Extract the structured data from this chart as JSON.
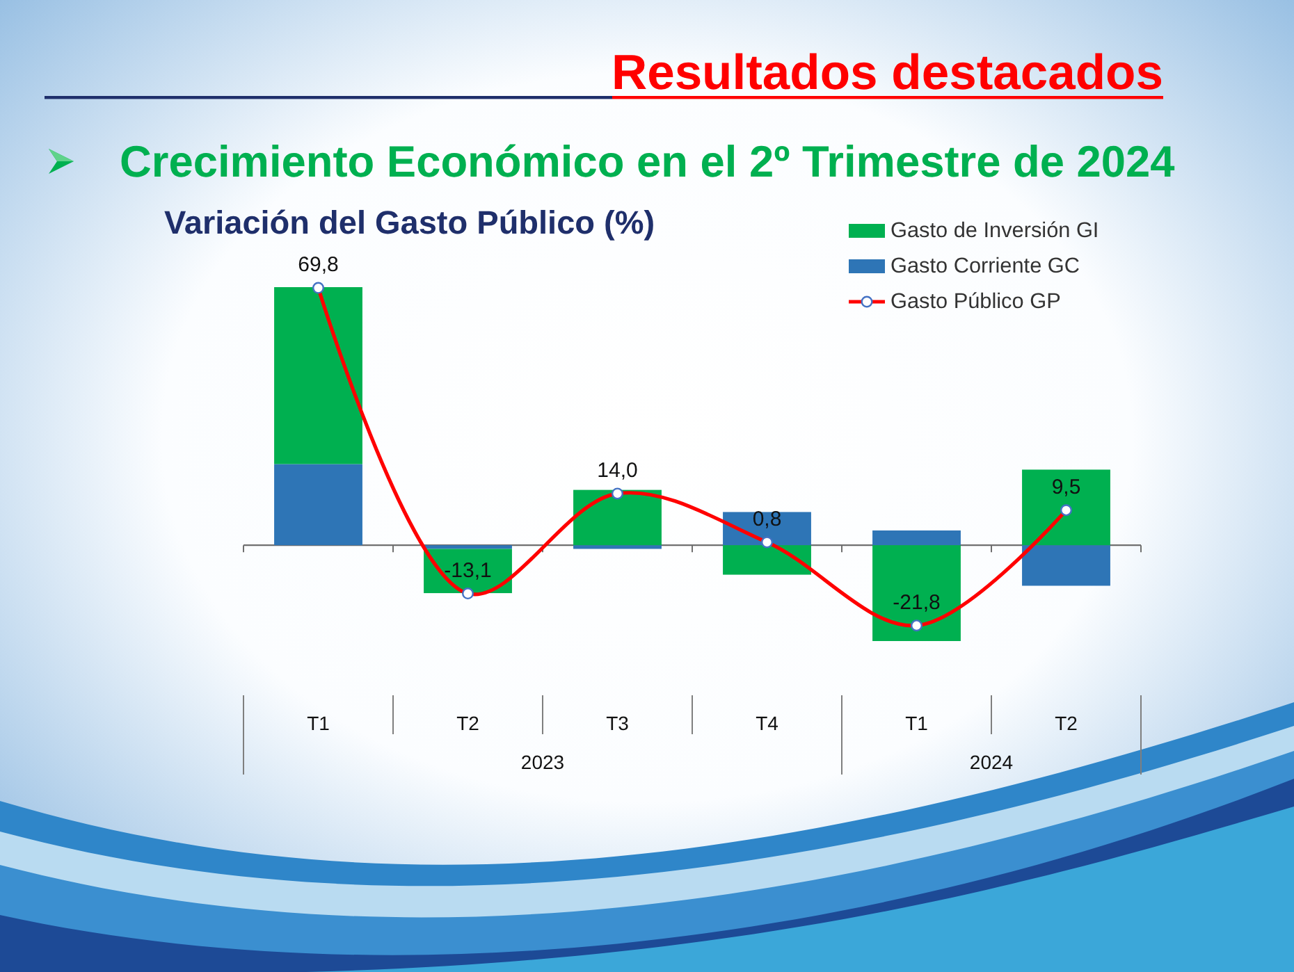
{
  "chart_data": {
    "type": "bar",
    "title": "Variación del Gasto Público (%)",
    "subtitle": "Crecimiento Económico en el 2º Trimestre de 2024",
    "annotations": [
      "Resultados destacados",
      "2023",
      "2024"
    ],
    "categories": [
      "T1",
      "T2",
      "T3",
      "T4",
      "T1",
      "T2"
    ],
    "stacked": true,
    "series": [
      {
        "name": "Gasto Corriente GC",
        "color": "#2e75b6",
        "values": [
          22,
          -1,
          -1,
          9,
          4,
          -11
        ]
      },
      {
        "name": "Gasto de Inversión GI",
        "color": "#00b050",
        "values": [
          48,
          -12,
          15,
          -8,
          -26,
          20.5
        ]
      },
      {
        "name": "Gasto Público GP",
        "type": "line",
        "color": "#ff0000",
        "values": [
          69.8,
          -13.1,
          14.0,
          0.8,
          -21.8,
          9.5
        ],
        "value_labels": [
          "69,8",
          "-13,1",
          "14,0",
          "0,8",
          "-21,8",
          "9,5"
        ]
      }
    ],
    "tick_labels": "x",
    "legend": "top right",
    "marker": "circle"
  }
}
